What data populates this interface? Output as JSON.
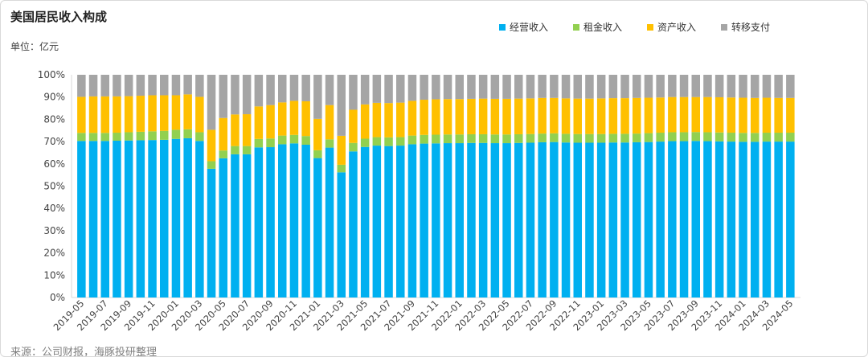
{
  "chart_data": {
    "type": "bar",
    "stacked": true,
    "title": "美国居民收入构成",
    "unit_label": "单位：亿元",
    "source": "来源：公司财报，海豚投研整理",
    "legend_position": "top-right",
    "ylim": [
      0,
      100
    ],
    "yticks": [
      "0%",
      "10%",
      "20%",
      "30%",
      "40%",
      "50%",
      "60%",
      "70%",
      "80%",
      "90%",
      "100%"
    ],
    "categories": [
      "2019-05",
      "2019-06",
      "2019-07",
      "2019-08",
      "2019-09",
      "2019-10",
      "2019-11",
      "2019-12",
      "2020-01",
      "2020-02",
      "2020-03",
      "2020-04",
      "2020-05",
      "2020-06",
      "2020-07",
      "2020-08",
      "2020-09",
      "2020-10",
      "2020-11",
      "2020-12",
      "2021-01",
      "2021-02",
      "2021-03",
      "2021-04",
      "2021-05",
      "2021-06",
      "2021-07",
      "2021-08",
      "2021-09",
      "2021-10",
      "2021-11",
      "2021-12",
      "2022-01",
      "2022-02",
      "2022-03",
      "2022-04",
      "2022-05",
      "2022-06",
      "2022-07",
      "2022-08",
      "2022-09",
      "2022-10",
      "2022-11",
      "2022-12",
      "2023-01",
      "2023-02",
      "2023-03",
      "2023-04",
      "2023-05",
      "2023-06",
      "2023-07",
      "2023-08",
      "2023-09",
      "2023-10",
      "2023-11",
      "2023-12",
      "2024-01",
      "2024-02",
      "2024-03",
      "2024-04",
      "2024-05"
    ],
    "series": [
      {
        "name": "经营收入",
        "color": "#00b0f0",
        "values": [
          70.3,
          70.3,
          70.3,
          70.4,
          70.5,
          70.6,
          70.7,
          70.8,
          71.2,
          71.5,
          70.3,
          57.8,
          62.5,
          64.3,
          64.3,
          67.4,
          67.5,
          68.8,
          69.2,
          68.6,
          62.6,
          67.3,
          56.2,
          65.6,
          67.6,
          68.2,
          68.0,
          68.2,
          68.8,
          69.1,
          69.2,
          69.3,
          69.3,
          69.4,
          69.4,
          69.3,
          69.3,
          69.4,
          69.5,
          69.7,
          69.8,
          69.6,
          69.5,
          69.5,
          69.5,
          69.6,
          69.6,
          69.7,
          69.8,
          70.0,
          70.2,
          70.2,
          70.3,
          70.2,
          70.1,
          70.0,
          69.9,
          69.9,
          70.0,
          70.0,
          70.0
        ]
      },
      {
        "name": "租金收入",
        "color": "#92d050",
        "values": [
          3.6,
          3.6,
          3.6,
          3.6,
          3.7,
          3.8,
          3.9,
          4.0,
          4.1,
          4.0,
          3.9,
          3.4,
          3.5,
          3.7,
          3.7,
          3.8,
          3.9,
          3.9,
          3.8,
          3.9,
          3.5,
          3.7,
          3.4,
          3.8,
          3.7,
          3.8,
          3.9,
          3.8,
          3.9,
          3.9,
          3.9,
          3.9,
          3.9,
          3.9,
          3.9,
          3.9,
          3.9,
          3.9,
          3.9,
          3.9,
          3.9,
          3.9,
          3.9,
          3.9,
          3.9,
          3.9,
          3.9,
          3.9,
          4.0,
          4.0,
          4.0,
          4.0,
          4.0,
          4.0,
          4.0,
          4.0,
          4.0,
          4.0,
          4.0,
          4.0,
          4.0
        ]
      },
      {
        "name": "资产收入",
        "color": "#ffc000",
        "values": [
          16.2,
          16.4,
          16.4,
          16.3,
          16.2,
          16.2,
          16.2,
          16.0,
          15.5,
          15.7,
          15.9,
          14.1,
          14.6,
          14.2,
          14.3,
          14.6,
          15.0,
          14.9,
          15.3,
          15.6,
          14.1,
          15.4,
          13.0,
          14.9,
          15.4,
          15.4,
          15.4,
          15.5,
          15.6,
          15.8,
          15.9,
          15.9,
          15.9,
          15.9,
          16.0,
          16.0,
          16.0,
          16.0,
          16.0,
          16.0,
          15.9,
          15.9,
          15.9,
          15.9,
          16.0,
          16.0,
          16.0,
          16.0,
          15.9,
          15.8,
          15.8,
          15.8,
          15.7,
          15.8,
          15.8,
          15.8,
          15.8,
          15.7,
          15.7,
          15.6,
          15.6
        ]
      },
      {
        "name": "转移支付",
        "color": "#a5a5a5",
        "values": [
          9.9,
          9.7,
          9.7,
          9.7,
          9.6,
          9.4,
          9.2,
          9.2,
          9.2,
          8.8,
          9.9,
          24.7,
          19.4,
          17.8,
          17.7,
          14.2,
          13.6,
          12.4,
          11.7,
          11.9,
          19.8,
          13.6,
          27.4,
          15.7,
          13.3,
          12.6,
          12.7,
          12.5,
          11.7,
          11.2,
          11.0,
          10.9,
          10.9,
          10.8,
          10.7,
          10.8,
          10.8,
          10.7,
          10.6,
          10.4,
          10.4,
          10.6,
          10.7,
          10.7,
          10.6,
          10.5,
          10.5,
          10.4,
          10.3,
          10.2,
          10.0,
          10.0,
          10.0,
          10.0,
          10.1,
          10.2,
          10.3,
          10.4,
          10.3,
          10.4,
          10.4
        ]
      }
    ]
  }
}
